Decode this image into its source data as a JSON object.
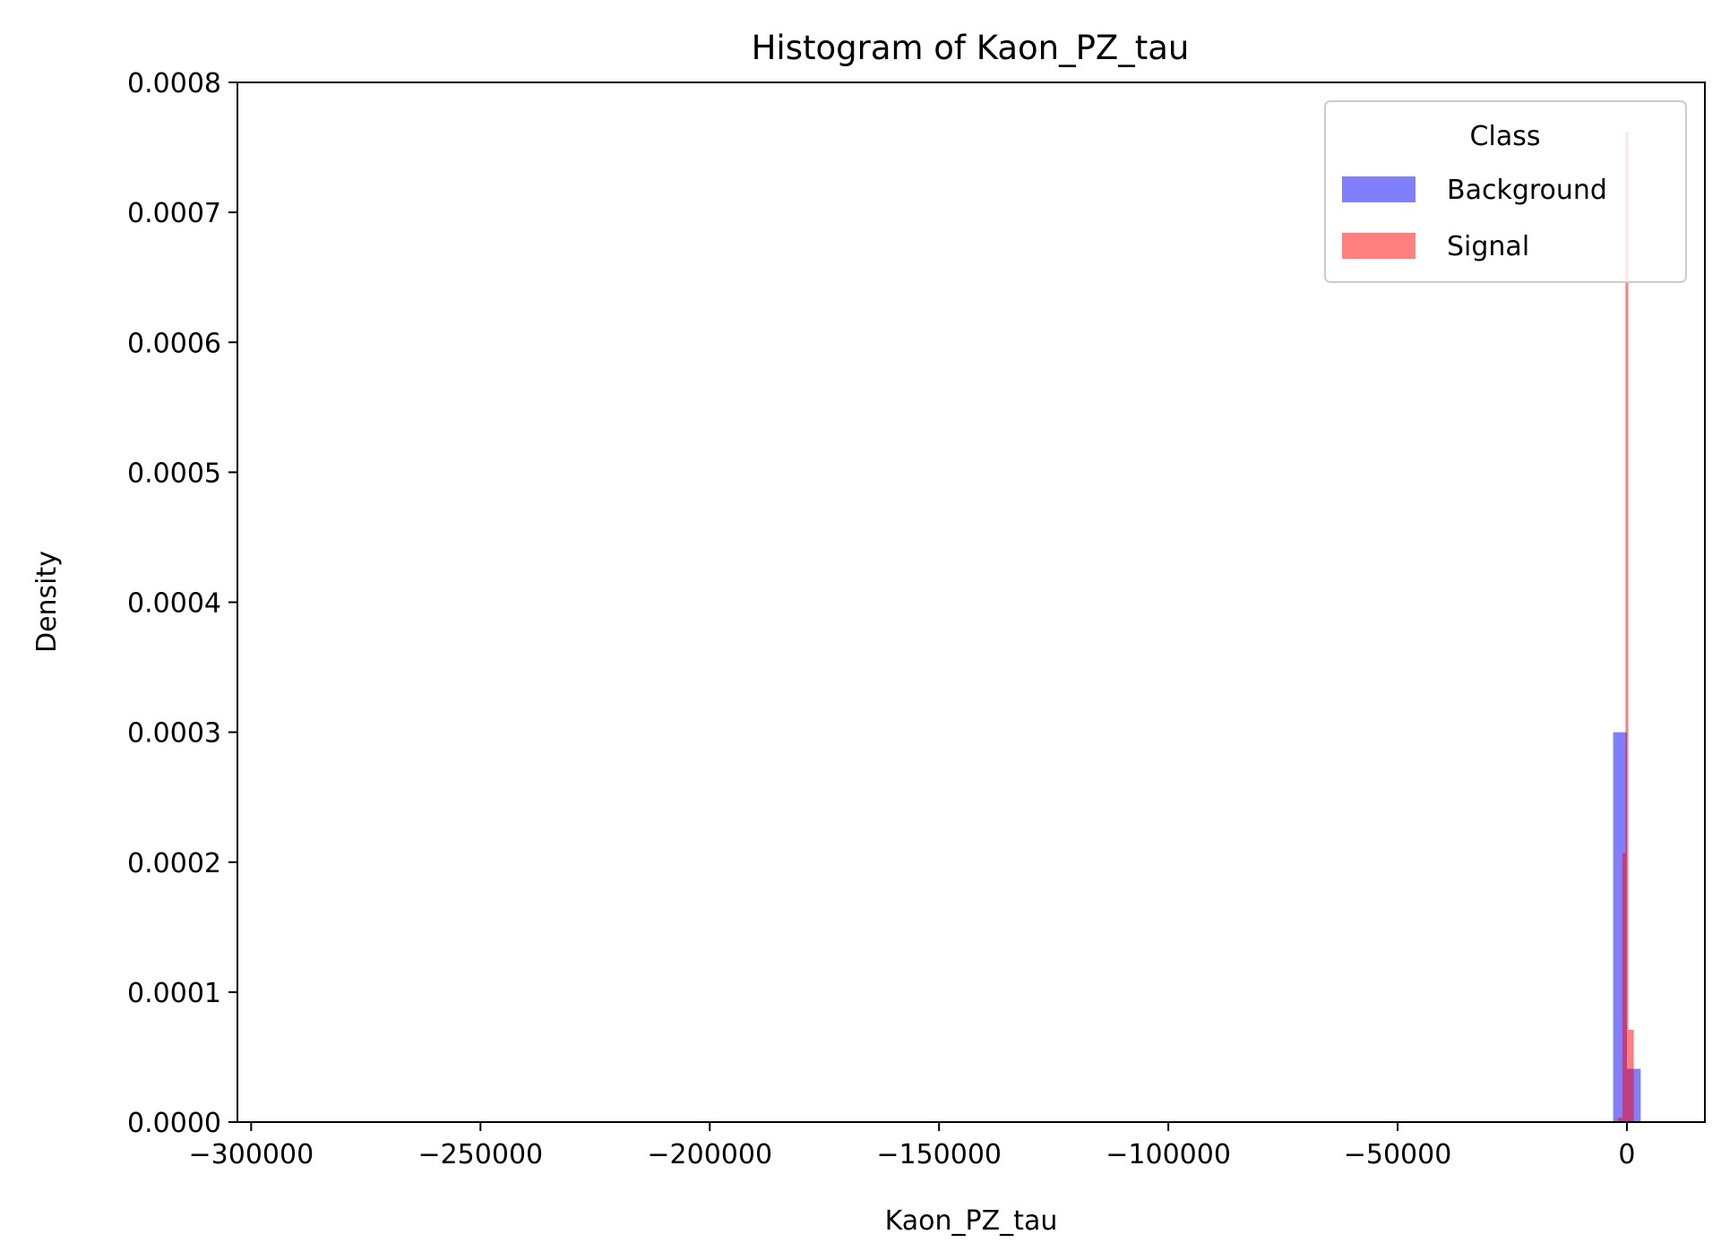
{
  "chart_data": {
    "type": "bar",
    "title": "Histogram of Kaon_PZ_tau",
    "xlabel": "Kaon_PZ_tau",
    "ylabel": "Density",
    "xlim": [
      -303000,
      17000
    ],
    "ylim": [
      0,
      0.0008
    ],
    "x_ticks": [
      -300000,
      -250000,
      -200000,
      -150000,
      -100000,
      -50000,
      0
    ],
    "x_tick_labels": [
      "−300000",
      "−250000",
      "−200000",
      "−150000",
      "−100000",
      "−50000",
      "0"
    ],
    "y_ticks": [
      0,
      0.0001,
      0.0002,
      0.0003,
      0.0004,
      0.0005,
      0.0006,
      0.0007,
      0.0008
    ],
    "y_tick_labels": [
      "0.0000",
      "0.0001",
      "0.0002",
      "0.0003",
      "0.0004",
      "0.0005",
      "0.0006",
      "0.0007",
      "0.0008"
    ],
    "grid": false,
    "legend": {
      "title": "Class",
      "position": "top-right"
    },
    "series": [
      {
        "name": "Background",
        "color": "#0000ff",
        "alpha": 0.5,
        "bins": [
          {
            "x0": -3000,
            "x1": 0,
            "density": 0.0003
          },
          {
            "x0": 0,
            "x1": 3000,
            "density": 4.1e-05
          }
        ]
      },
      {
        "name": "Signal",
        "color": "#ff0000",
        "alpha": 0.5,
        "bins": [
          {
            "x0": -2000,
            "x1": -1000,
            "density": 3.3e-06
          },
          {
            "x0": -1000,
            "x1": -300,
            "density": 0.000207
          },
          {
            "x0": -300,
            "x1": 300,
            "density": 0.000762
          },
          {
            "x0": 300,
            "x1": 1500,
            "density": 7.1e-05
          }
        ]
      }
    ]
  }
}
